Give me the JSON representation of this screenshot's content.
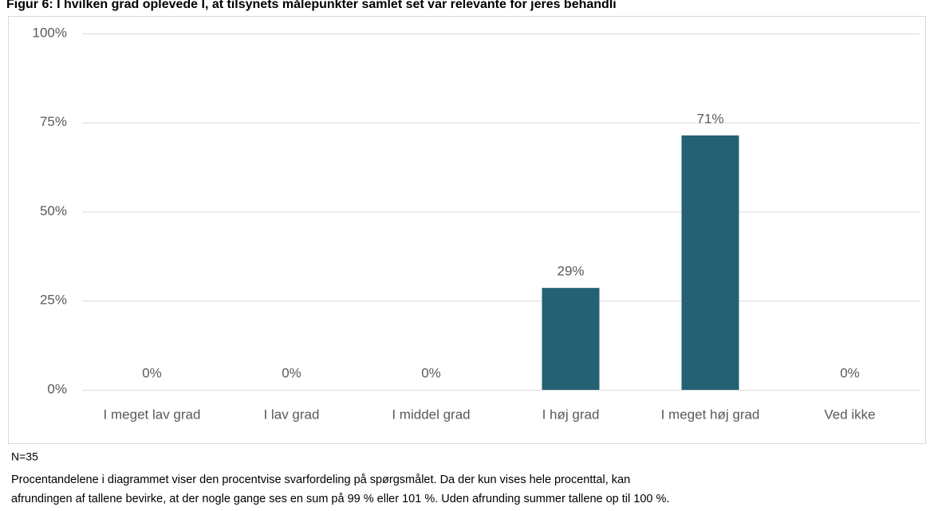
{
  "chart_data": {
    "type": "bar",
    "title": "Figur 6: I hvilken grad oplevede I, at tilsynets målepunkter samlet set var relevante for jeres behandli",
    "categories": [
      "I meget lav grad",
      "I lav grad",
      "I middel grad",
      "I høj grad",
      "I meget høj grad",
      "Ved ikke"
    ],
    "values": [
      0,
      0,
      0,
      28.6,
      71.4,
      0
    ],
    "value_labels": [
      "0%",
      "0%",
      "0%",
      "29%",
      "71%",
      "0%"
    ],
    "color": "#256174",
    "ylim": [
      0,
      100
    ],
    "yticks": [
      {
        "value": 0,
        "label": "0%"
      },
      {
        "value": 25,
        "label": "25%"
      },
      {
        "value": 50,
        "label": "50%"
      },
      {
        "value": 75,
        "label": "75%"
      },
      {
        "value": 100,
        "label": "100%"
      }
    ],
    "grid": true,
    "notes": [
      "N=35",
      "Procentandelene i diagrammet viser den procentvise svarfordeling på spørgsmålet. Da der kun vises hele procenttal, kan",
      "afrundingen af tallene bevirke, at der nogle gange ses en sum på 99 % eller 101 %. Uden afrunding summer tallene op til 100 %."
    ]
  }
}
